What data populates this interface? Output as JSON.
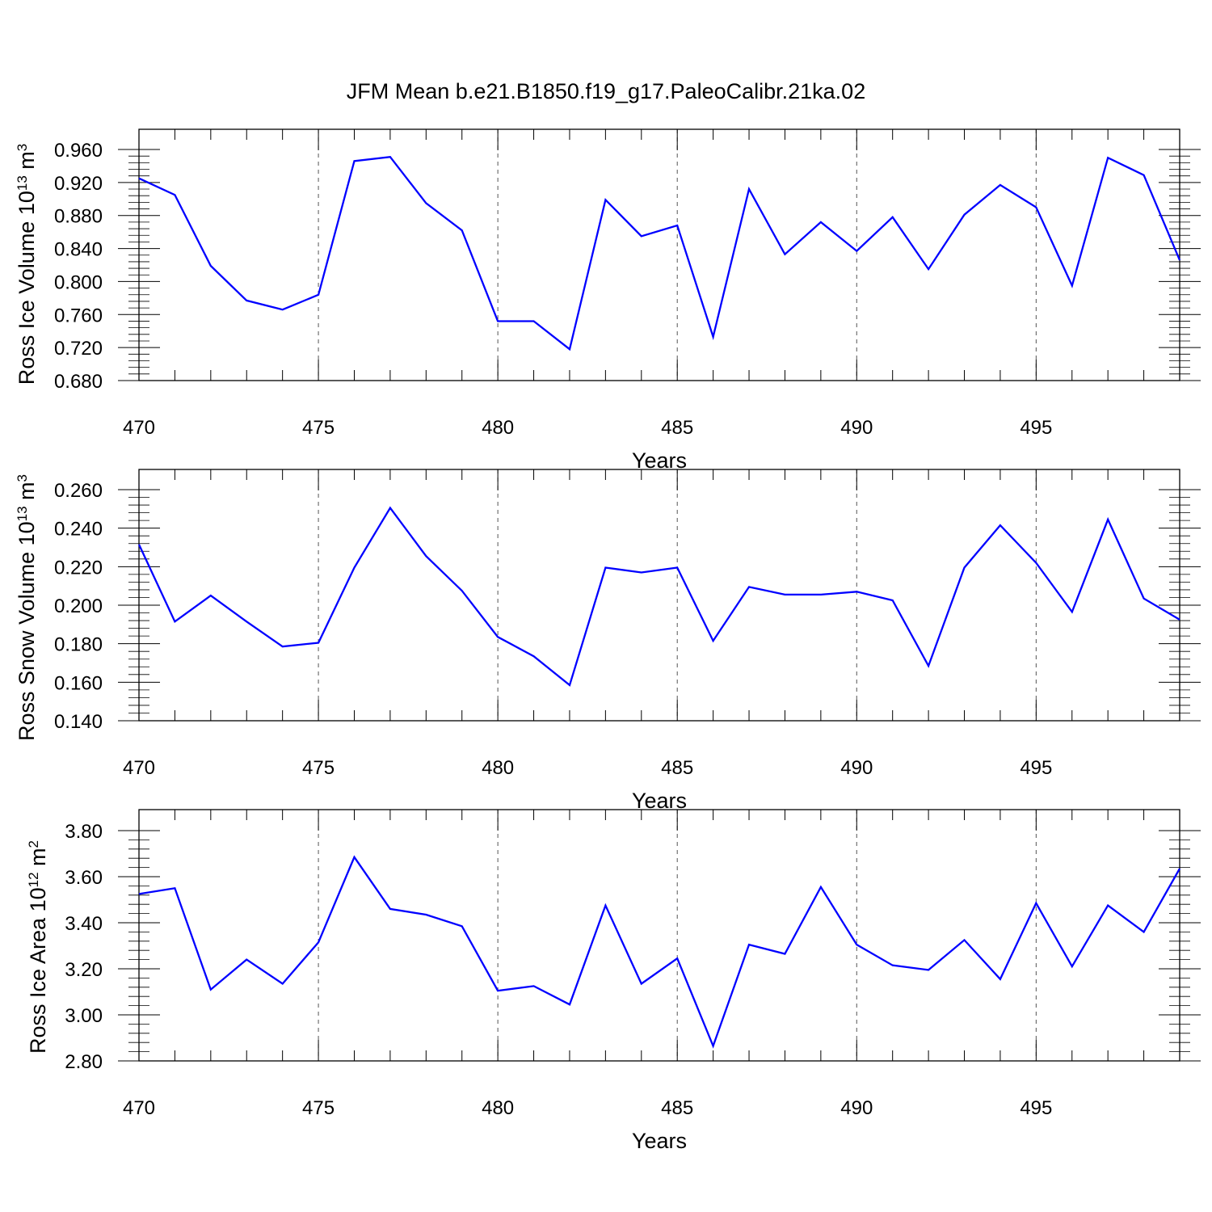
{
  "figure": {
    "title": "JFM Mean b.e21.B1850.f19_g17.PaleoCalibr.21ka.02"
  },
  "chart_data": [
    {
      "type": "line",
      "title": "JFM Mean b.e21.B1850.f19_g17.PaleoCalibr.21ka.02",
      "xlabel": "Years",
      "ylabel": {
        "main": "Ross Ice Volume 10",
        "exponent": "13",
        "unit": " m",
        "unit_exponent": "3"
      },
      "x": [
        470,
        471,
        472,
        473,
        474,
        475,
        476,
        477,
        478,
        479,
        480,
        481,
        482,
        483,
        484,
        485,
        486,
        487,
        488,
        489,
        490,
        491,
        492,
        493,
        494,
        495,
        496,
        497,
        498,
        499
      ],
      "series": [
        {
          "values": [
            0.925,
            0.905,
            0.819,
            0.777,
            0.766,
            0.784,
            0.946,
            0.951,
            0.895,
            0.862,
            0.752,
            0.752,
            0.718,
            0.899,
            0.855,
            0.868,
            0.733,
            0.912,
            0.833,
            0.872,
            0.837,
            0.878,
            0.815,
            0.881,
            0.917,
            0.89,
            0.795,
            0.95,
            0.929,
            0.826
          ],
          "color": "#0000ff"
        }
      ],
      "xlim": [
        470,
        499
      ],
      "ylim": [
        0.68,
        0.96
      ],
      "yticks": [
        "0.680",
        "0.720",
        "0.760",
        "0.800",
        "0.840",
        "0.880",
        "0.920",
        "0.960"
      ],
      "xticks": [
        "470",
        "475",
        "480",
        "485",
        "490",
        "495"
      ],
      "grid": "vertical dashed at major x ticks",
      "legend": "none"
    },
    {
      "type": "line",
      "xlabel": "Years",
      "ylabel": {
        "main": "Ross Snow Volume 10",
        "exponent": "13",
        "unit": " m",
        "unit_exponent": "3"
      },
      "x": [
        470,
        471,
        472,
        473,
        474,
        475,
        476,
        477,
        478,
        479,
        480,
        481,
        482,
        483,
        484,
        485,
        486,
        487,
        488,
        489,
        490,
        491,
        492,
        493,
        494,
        495,
        496,
        497,
        498,
        499
      ],
      "series": [
        {
          "values": [
            0.2315,
            0.1915,
            0.205,
            0.1915,
            0.1785,
            0.1805,
            0.2195,
            0.2505,
            0.2255,
            0.2075,
            0.1835,
            0.1735,
            0.1585,
            0.2195,
            0.217,
            0.2195,
            0.1815,
            0.2095,
            0.2055,
            0.2055,
            0.207,
            0.2025,
            0.1685,
            0.2195,
            0.2415,
            0.222,
            0.1965,
            0.2445,
            0.2035,
            0.1925
          ],
          "color": "#0000ff"
        }
      ],
      "xlim": [
        470,
        499
      ],
      "ylim": [
        0.14,
        0.26
      ],
      "yticks": [
        "0.140",
        "0.160",
        "0.180",
        "0.200",
        "0.220",
        "0.240",
        "0.260"
      ],
      "xticks": [
        "470",
        "475",
        "480",
        "485",
        "490",
        "495"
      ],
      "grid": "vertical dashed at major x ticks",
      "legend": "none"
    },
    {
      "type": "line",
      "xlabel": "Years",
      "ylabel": {
        "main": "Ross Ice Area 10",
        "exponent": "12",
        "unit": " m",
        "unit_exponent": "2"
      },
      "x": [
        470,
        471,
        472,
        473,
        474,
        475,
        476,
        477,
        478,
        479,
        480,
        481,
        482,
        483,
        484,
        485,
        486,
        487,
        488,
        489,
        490,
        491,
        492,
        493,
        494,
        495,
        496,
        497,
        498,
        499
      ],
      "series": [
        {
          "values": [
            3.525,
            3.55,
            3.11,
            3.24,
            3.135,
            3.315,
            3.685,
            3.46,
            3.435,
            3.385,
            3.105,
            3.125,
            3.045,
            3.475,
            3.135,
            3.245,
            2.865,
            3.305,
            3.265,
            3.555,
            3.305,
            3.215,
            3.195,
            3.325,
            3.155,
            3.485,
            3.21,
            3.475,
            3.36,
            3.635
          ],
          "color": "#0000ff"
        }
      ],
      "xlim": [
        470,
        499
      ],
      "ylim": [
        2.8,
        3.8
      ],
      "yticks": [
        "2.80",
        "3.00",
        "3.20",
        "3.40",
        "3.60",
        "3.80"
      ],
      "xticks": [
        "470",
        "475",
        "480",
        "485",
        "490",
        "495"
      ],
      "grid": "vertical dashed at major x ticks",
      "legend": "none"
    }
  ]
}
